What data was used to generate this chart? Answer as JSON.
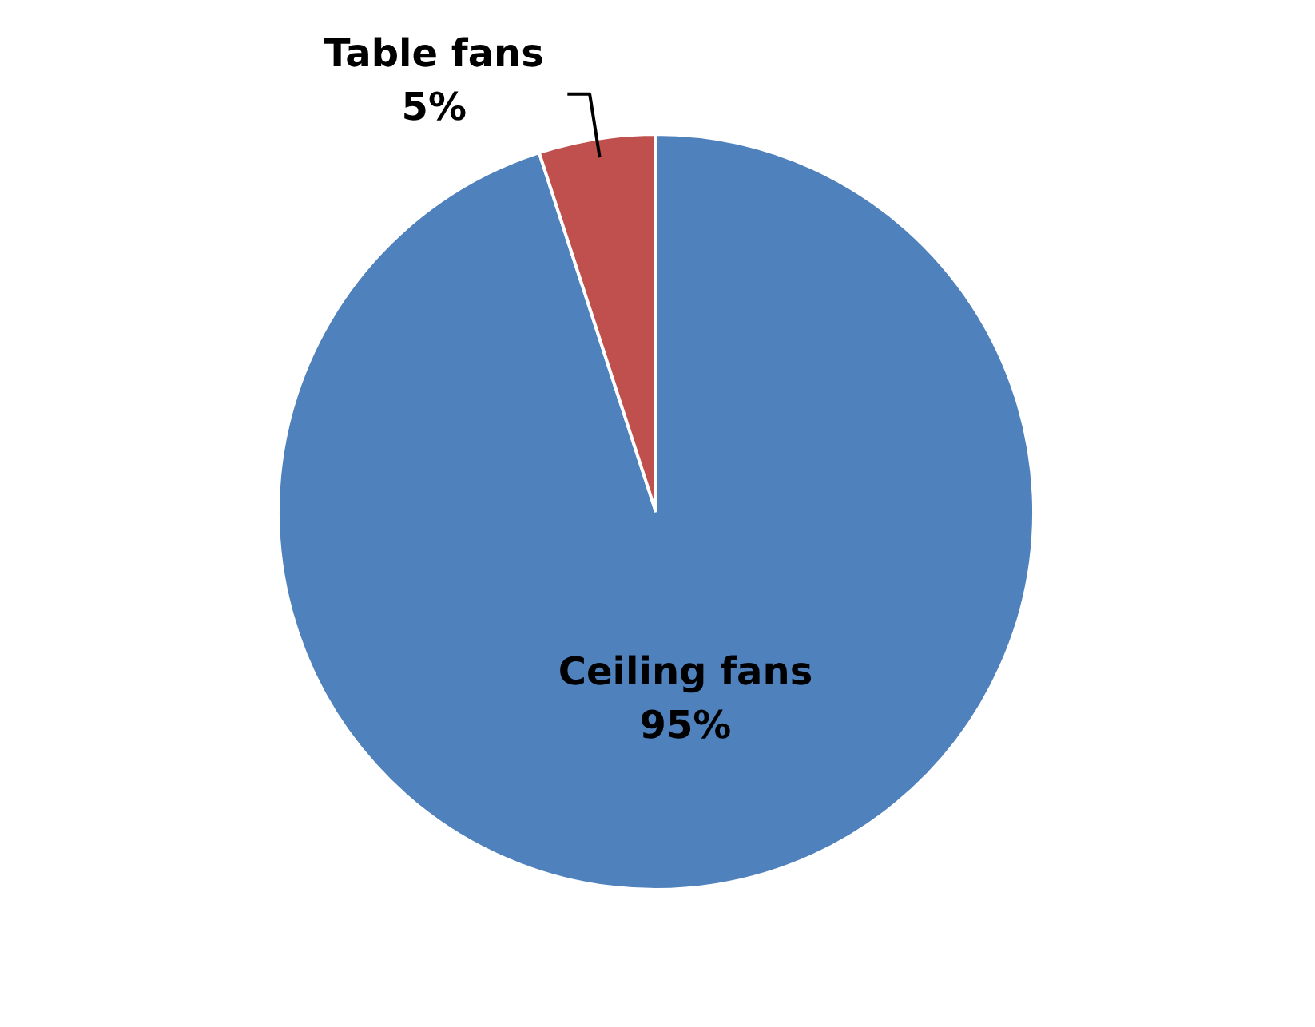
{
  "chart_data": {
    "type": "pie",
    "categories": [
      "Ceiling fans",
      "Table fans"
    ],
    "values": [
      95,
      5
    ],
    "colors": [
      "#4f81bd",
      "#c0504d"
    ],
    "value_labels": [
      "95%",
      "5%"
    ],
    "legend": false
  }
}
